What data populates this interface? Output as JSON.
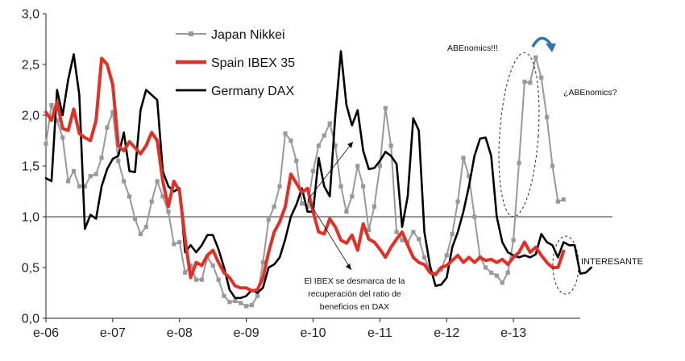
{
  "chart_data": {
    "type": "line",
    "ylim": [
      0,
      3
    ],
    "yticks": [
      "0,0",
      "0,5",
      "1,0",
      "1,5",
      "2,0",
      "2,5",
      "3,0"
    ],
    "x_tick_labels": [
      "e-06",
      "e-07",
      "e-08",
      "e-09",
      "e-10",
      "e-11",
      "e-12",
      "e-13"
    ],
    "x_start": "2006-01",
    "x_end": "2013-12",
    "reference_line": 1.0,
    "legend_position": "top-center",
    "series": [
      {
        "name": "Japan Nikkei",
        "color": "#999999",
        "style": "line-square-markers",
        "values": [
          1.72,
          2.1,
          1.95,
          1.78,
          1.35,
          1.45,
          1.3,
          1.3,
          1.4,
          1.42,
          1.58,
          1.88,
          2.03,
          1.55,
          1.35,
          1.2,
          0.98,
          0.83,
          0.9,
          1.15,
          1.35,
          1.2,
          1.05,
          0.73,
          0.75,
          0.45,
          0.52,
          0.38,
          0.38,
          0.6,
          0.52,
          0.38,
          0.22,
          0.16,
          0.17,
          0.15,
          0.12,
          0.13,
          0.22,
          0.55,
          0.97,
          1.1,
          1.3,
          1.82,
          1.75,
          1.55,
          1.13,
          1.1,
          1.45,
          1.7,
          1.8,
          1.92,
          1.7,
          1.3,
          1.05,
          1.2,
          1.5,
          1.3,
          0.87,
          1.1,
          1.5,
          2.07,
          1.7,
          0.85,
          0.77,
          0.75,
          0.85,
          0.78,
          0.6,
          0.47,
          0.44,
          0.48,
          0.62,
          0.83,
          1.15,
          1.58,
          1.4,
          1.0,
          0.6,
          0.5,
          0.45,
          0.42,
          0.35,
          0.45,
          0.77,
          1.53,
          2.33,
          2.32,
          2.57,
          2.37,
          1.98,
          1.5,
          1.15,
          1.17
        ]
      },
      {
        "name": "Spain IBEX 35",
        "color": "#e03028",
        "style": "thick-line",
        "values": [
          2.03,
          1.95,
          2.13,
          1.87,
          1.85,
          2.06,
          1.82,
          1.78,
          1.75,
          1.95,
          2.56,
          2.5,
          2.3,
          1.7,
          1.65,
          1.74,
          1.68,
          1.62,
          1.7,
          1.83,
          1.75,
          1.35,
          1.1,
          1.35,
          1.25,
          0.78,
          0.4,
          0.55,
          0.52,
          0.62,
          0.67,
          0.55,
          0.45,
          0.4,
          0.32,
          0.3,
          0.3,
          0.27,
          0.28,
          0.4,
          0.65,
          0.85,
          0.95,
          1.1,
          1.42,
          1.33,
          1.24,
          1.28,
          1.05,
          0.85,
          0.83,
          0.98,
          0.9,
          0.77,
          0.74,
          0.82,
          0.67,
          0.93,
          0.78,
          0.75,
          0.68,
          0.6,
          0.7,
          0.78,
          0.85,
          0.72,
          0.6,
          0.55,
          0.53,
          0.45,
          0.43,
          0.5,
          0.52,
          0.57,
          0.62,
          0.55,
          0.6,
          0.55,
          0.6,
          0.57,
          0.58,
          0.55,
          0.58,
          0.53,
          0.6,
          0.65,
          0.75,
          0.65,
          0.7,
          0.62,
          0.55,
          0.5,
          0.5,
          0.66
        ]
      },
      {
        "name": "Germany DAX",
        "color": "#000000",
        "style": "line",
        "values": [
          1.38,
          1.35,
          2.25,
          2.0,
          2.35,
          2.6,
          2.2,
          0.88,
          1.02,
          0.98,
          1.3,
          1.47,
          1.57,
          1.6,
          1.83,
          1.45,
          1.44,
          2.05,
          2.25,
          2.2,
          2.15,
          1.45,
          1.3,
          1.25,
          1.28,
          0.65,
          0.72,
          0.65,
          0.72,
          0.82,
          0.82,
          0.68,
          0.5,
          0.28,
          0.2,
          0.2,
          0.22,
          0.28,
          0.25,
          0.3,
          0.5,
          0.53,
          0.6,
          0.78,
          1.0,
          1.12,
          1.28,
          1.05,
          1.05,
          1.58,
          1.3,
          1.2,
          2.0,
          2.63,
          2.1,
          1.9,
          2.05,
          1.65,
          1.47,
          1.48,
          1.55,
          1.64,
          1.6,
          1.52,
          0.9,
          1.2,
          1.97,
          1.85,
          0.85,
          0.52,
          0.32,
          0.33,
          0.4,
          0.7,
          0.85,
          1.05,
          1.3,
          1.6,
          1.77,
          1.78,
          1.6,
          1.0,
          0.75,
          0.65,
          0.62,
          0.6,
          0.62,
          0.6,
          0.63,
          0.83,
          0.75,
          0.72,
          0.6,
          0.75,
          0.72,
          0.72,
          0.44,
          0.45,
          0.5
        ]
      }
    ],
    "annotations": [
      {
        "text": "ABEnomics!!!"
      },
      {
        "text": "¿ABEnomics?"
      },
      {
        "text": "INTERESANTE"
      },
      {
        "lines": [
          "El IBEX se desmarca de la",
          "recuperación del ratio de",
          "beneficios en DAX"
        ]
      }
    ]
  }
}
